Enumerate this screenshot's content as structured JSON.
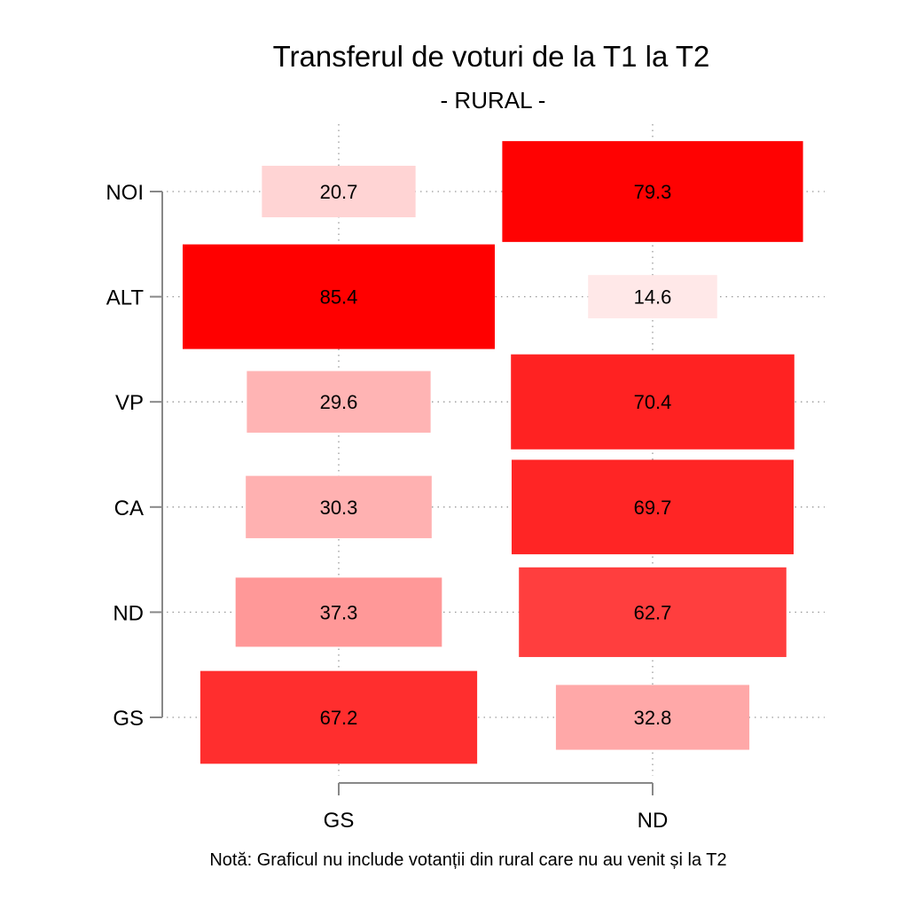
{
  "chart_data": {
    "type": "heatmap",
    "title": "Transferul de voturi de la T1 la T2",
    "subtitle": "- RURAL -",
    "columns": [
      "GS",
      "ND"
    ],
    "rows": [
      "NOI",
      "ALT",
      "VP",
      "CA",
      "ND",
      "GS"
    ],
    "values": [
      [
        20.7,
        79.3
      ],
      [
        85.4,
        14.6
      ],
      [
        29.6,
        70.4
      ],
      [
        30.3,
        69.7
      ],
      [
        37.3,
        62.7
      ],
      [
        67.2,
        32.8
      ]
    ],
    "note": "Notă: Graficul nu include votanții din rural care nu au venit și la T2",
    "grid": true
  }
}
